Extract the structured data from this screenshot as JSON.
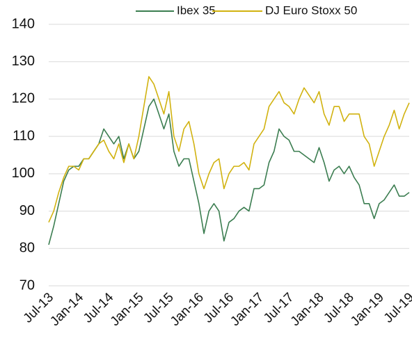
{
  "chart_data": {
    "type": "line",
    "categories": [
      "Jul-13",
      null,
      null,
      null,
      null,
      null,
      "Jan-14",
      null,
      null,
      null,
      null,
      null,
      "Jul-14",
      null,
      null,
      null,
      null,
      null,
      "Jan-15",
      null,
      null,
      null,
      null,
      null,
      "Jul-15",
      null,
      null,
      null,
      null,
      null,
      "Jan-16",
      null,
      null,
      null,
      null,
      null,
      "Jul-16",
      null,
      null,
      null,
      null,
      null,
      "Jan-17",
      null,
      null,
      null,
      null,
      null,
      "Jul-17",
      null,
      null,
      null,
      null,
      null,
      "Jan-18",
      null,
      null,
      null,
      null,
      null,
      "Jul-18",
      null,
      null,
      null,
      null,
      null,
      "Jan-19",
      null,
      null,
      null,
      null,
      null,
      "Jul-19"
    ],
    "series": [
      {
        "name": "Ibex 35",
        "color": "#3b7d50",
        "values": [
          81,
          86,
          92,
          98,
          101,
          102,
          102,
          104,
          104,
          106,
          108,
          112,
          110,
          108,
          110,
          104,
          108,
          104,
          106,
          112,
          118,
          120,
          116,
          112,
          116,
          106,
          102,
          104,
          104,
          98,
          92,
          84,
          90,
          92,
          90,
          82,
          87,
          88,
          90,
          91,
          90,
          96,
          96,
          97,
          103,
          106,
          112,
          110,
          109,
          106,
          106,
          105,
          104,
          103,
          107,
          103,
          98,
          101,
          102,
          100,
          102,
          99,
          97,
          92,
          92,
          88,
          92,
          93,
          95,
          97,
          94,
          94,
          95
        ]
      },
      {
        "name": "DJ Euro Stoxx 50",
        "color": "#d1b20f",
        "values": [
          87,
          90,
          95,
          99,
          102,
          102,
          101,
          104,
          104,
          106,
          108,
          109,
          106,
          104,
          108,
          103,
          108,
          104,
          110,
          118,
          126,
          124,
          120,
          116,
          122,
          110,
          106,
          112,
          114,
          108,
          100,
          96,
          100,
          103,
          104,
          96,
          100,
          102,
          102,
          103,
          101,
          108,
          110,
          112,
          118,
          120,
          122,
          119,
          118,
          116,
          120,
          123,
          121,
          119,
          122,
          116,
          113,
          118,
          118,
          114,
          116,
          116,
          116,
          110,
          108,
          102,
          106,
          110,
          113,
          117,
          112,
          116,
          119
        ]
      }
    ],
    "ylim": [
      70,
      140
    ],
    "yticks": [
      70,
      80,
      90,
      100,
      110,
      120,
      130,
      140
    ],
    "grid": true,
    "legend": "top"
  }
}
